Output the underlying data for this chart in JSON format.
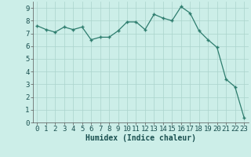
{
  "x": [
    0,
    1,
    2,
    3,
    4,
    5,
    6,
    7,
    8,
    9,
    10,
    11,
    12,
    13,
    14,
    15,
    16,
    17,
    18,
    19,
    20,
    21,
    22,
    23
  ],
  "y": [
    7.6,
    7.3,
    7.1,
    7.5,
    7.3,
    7.5,
    6.5,
    6.7,
    6.7,
    7.2,
    7.9,
    7.9,
    7.3,
    8.5,
    8.2,
    8.0,
    9.1,
    8.6,
    7.2,
    6.5,
    5.9,
    3.4,
    2.8,
    0.4
  ],
  "line_color": "#2e7d6e",
  "marker_color": "#2e7d6e",
  "bg_color": "#cceee8",
  "grid_color": "#aad4cc",
  "xlabel": "Humidex (Indice chaleur)",
  "ylim": [
    0,
    9.5
  ],
  "xlim": [
    -0.5,
    23.5
  ],
  "yticks": [
    0,
    1,
    2,
    3,
    4,
    5,
    6,
    7,
    8,
    9
  ],
  "xticks": [
    0,
    1,
    2,
    3,
    4,
    5,
    6,
    7,
    8,
    9,
    10,
    11,
    12,
    13,
    14,
    15,
    16,
    17,
    18,
    19,
    20,
    21,
    22,
    23
  ],
  "xlabel_fontsize": 7,
  "tick_fontsize": 6.5
}
